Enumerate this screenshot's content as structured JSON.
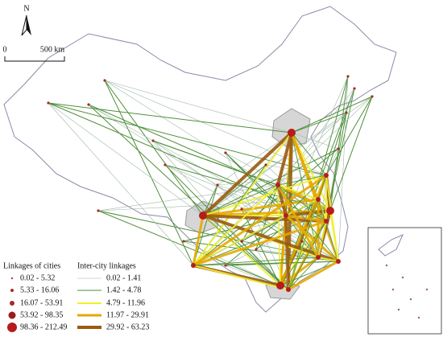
{
  "north": "N",
  "scale": {
    "start": "0",
    "end": "500 km"
  },
  "legend": {
    "cities": {
      "title": "Linkages of cities",
      "items": [
        "0.02 - 5.32",
        "5.33 - 16.06",
        "16.07 - 53.91",
        "53.92 - 98.35",
        "98.36 - 212.49"
      ]
    },
    "linkages": {
      "title": "Inter-city linkages",
      "items": [
        "0.02 - 1.41",
        "1.42 - 4.78",
        "4.79 - 11.96",
        "11.97 - 29.91",
        "29.92 - 63.23"
      ]
    }
  }
}
